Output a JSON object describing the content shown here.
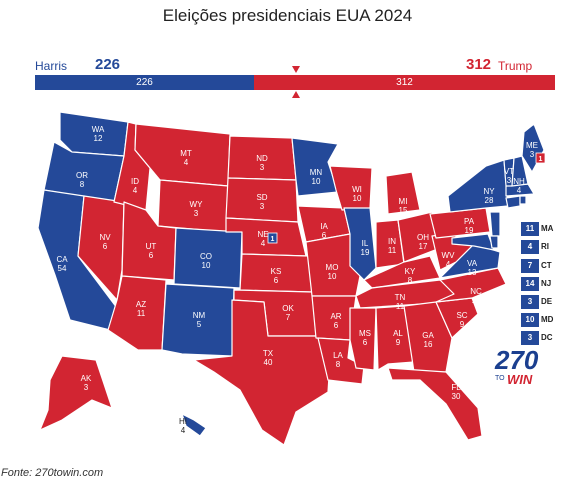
{
  "title": "Eleições presidenciais EUA 2024",
  "header": {
    "dem_name": "Harris",
    "dem_votes": "226",
    "rep_name": "Trump",
    "rep_votes": "312",
    "bar_dem": "226",
    "bar_rep": "312"
  },
  "colors": {
    "dem": "#244999",
    "rep": "#d22532"
  },
  "states": [
    {
      "abbr": "WA",
      "ev": "12",
      "party": "dem"
    },
    {
      "abbr": "OR",
      "ev": "8",
      "party": "dem"
    },
    {
      "abbr": "CA",
      "ev": "54",
      "party": "dem"
    },
    {
      "abbr": "NV",
      "ev": "6",
      "party": "rep"
    },
    {
      "abbr": "ID",
      "ev": "4",
      "party": "rep"
    },
    {
      "abbr": "MT",
      "ev": "4",
      "party": "rep"
    },
    {
      "abbr": "WY",
      "ev": "3",
      "party": "rep"
    },
    {
      "abbr": "UT",
      "ev": "6",
      "party": "rep"
    },
    {
      "abbr": "AZ",
      "ev": "11",
      "party": "rep"
    },
    {
      "abbr": "CO",
      "ev": "10",
      "party": "dem"
    },
    {
      "abbr": "NM",
      "ev": "5",
      "party": "dem"
    },
    {
      "abbr": "ND",
      "ev": "3",
      "party": "rep"
    },
    {
      "abbr": "SD",
      "ev": "3",
      "party": "rep"
    },
    {
      "abbr": "NE",
      "ev": "4",
      "party": "rep"
    },
    {
      "abbr": "KS",
      "ev": "6",
      "party": "rep"
    },
    {
      "abbr": "OK",
      "ev": "7",
      "party": "rep"
    },
    {
      "abbr": "TX",
      "ev": "40",
      "party": "rep"
    },
    {
      "abbr": "MN",
      "ev": "10",
      "party": "dem"
    },
    {
      "abbr": "IA",
      "ev": "6",
      "party": "rep"
    },
    {
      "abbr": "MO",
      "ev": "10",
      "party": "rep"
    },
    {
      "abbr": "AR",
      "ev": "6",
      "party": "rep"
    },
    {
      "abbr": "LA",
      "ev": "8",
      "party": "rep"
    },
    {
      "abbr": "WI",
      "ev": "10",
      "party": "rep"
    },
    {
      "abbr": "IL",
      "ev": "19",
      "party": "dem"
    },
    {
      "abbr": "MI",
      "ev": "15",
      "party": "rep"
    },
    {
      "abbr": "IN",
      "ev": "11",
      "party": "rep"
    },
    {
      "abbr": "OH",
      "ev": "17",
      "party": "rep"
    },
    {
      "abbr": "KY",
      "ev": "8",
      "party": "rep"
    },
    {
      "abbr": "TN",
      "ev": "11",
      "party": "rep"
    },
    {
      "abbr": "MS",
      "ev": "6",
      "party": "rep"
    },
    {
      "abbr": "AL",
      "ev": "9",
      "party": "rep"
    },
    {
      "abbr": "GA",
      "ev": "16",
      "party": "rep"
    },
    {
      "abbr": "FL",
      "ev": "30",
      "party": "rep"
    },
    {
      "abbr": "SC",
      "ev": "9",
      "party": "rep"
    },
    {
      "abbr": "NC",
      "ev": "16",
      "party": "rep"
    },
    {
      "abbr": "VA",
      "ev": "13",
      "party": "dem"
    },
    {
      "abbr": "WV",
      "ev": "4",
      "party": "rep"
    },
    {
      "abbr": "PA",
      "ev": "19",
      "party": "rep"
    },
    {
      "abbr": "NY",
      "ev": "28",
      "party": "dem"
    },
    {
      "abbr": "VT",
      "ev": "3",
      "party": "dem"
    },
    {
      "abbr": "NH",
      "ev": "4",
      "party": "dem"
    },
    {
      "abbr": "ME",
      "ev": "3",
      "party": "dem"
    },
    {
      "abbr": "AK",
      "ev": "3",
      "party": "rep"
    },
    {
      "abbr": "HI",
      "ev": "4",
      "party": "dem"
    }
  ],
  "split_districts": {
    "ne_dem": "1",
    "me_rep": "1"
  },
  "small_states": [
    {
      "abbr": "MA",
      "ev": "11"
    },
    {
      "abbr": "RI",
      "ev": "4"
    },
    {
      "abbr": "CT",
      "ev": "7"
    },
    {
      "abbr": "NJ",
      "ev": "14"
    },
    {
      "abbr": "DE",
      "ev": "3"
    },
    {
      "abbr": "MD",
      "ev": "10"
    },
    {
      "abbr": "DC",
      "ev": "3"
    }
  ],
  "logo": {
    "number": "270",
    "to": "TO",
    "win": "WIN"
  },
  "source": "Fonte: 270towin.com"
}
